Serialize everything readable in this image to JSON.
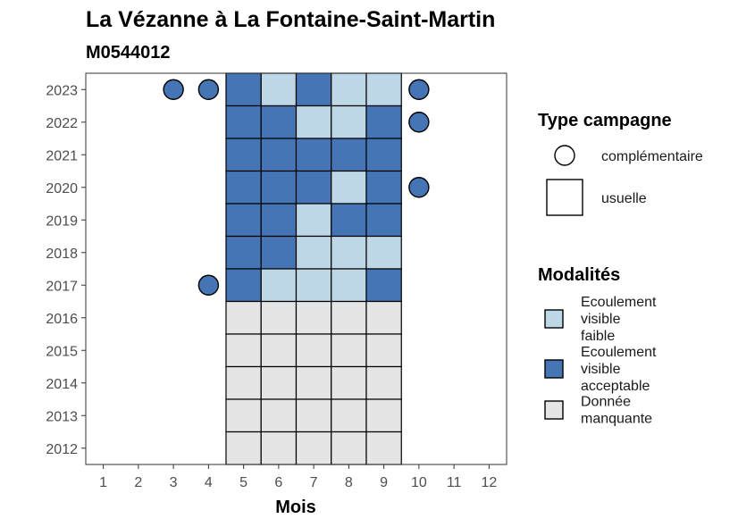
{
  "chart_data": {
    "type": "heatmap",
    "title": "La Vézanne à La Fontaine-Saint-Martin",
    "subtitle": "M0544012",
    "xlabel": "Mois",
    "ylabel": "",
    "x_ticks": [
      1,
      2,
      3,
      4,
      5,
      6,
      7,
      8,
      9,
      10,
      11,
      12
    ],
    "y_ticks": [
      2012,
      2013,
      2014,
      2015,
      2016,
      2017,
      2018,
      2019,
      2020,
      2021,
      2022,
      2023
    ],
    "xlim": [
      0.5,
      12.5
    ],
    "ylim": [
      2011.5,
      2023.5
    ],
    "grid": false,
    "legend_position": "right",
    "modalites": {
      "title": "Modalités",
      "entries": [
        {
          "key": "faible",
          "label_lines": [
            "Ecoulement",
            "visible",
            "faible"
          ],
          "color": "#bdd7e7"
        },
        {
          "key": "acceptable",
          "label_lines": [
            "Ecoulement",
            "visible",
            "acceptable"
          ],
          "color": "#4575b4"
        },
        {
          "key": "manquante",
          "label_lines": [
            "Donnée",
            "manquante"
          ],
          "color": "#e5e5e5"
        }
      ]
    },
    "type_campagne": {
      "title": "Type campagne",
      "entries": [
        {
          "key": "complementaire",
          "label": "complémentaire",
          "shape": "circle"
        },
        {
          "key": "usuelle",
          "label": "usuelle",
          "shape": "square"
        }
      ]
    },
    "usuelle_tiles": [
      {
        "year": 2023,
        "month": 5,
        "modalite": "acceptable"
      },
      {
        "year": 2023,
        "month": 6,
        "modalite": "faible"
      },
      {
        "year": 2023,
        "month": 7,
        "modalite": "acceptable"
      },
      {
        "year": 2023,
        "month": 8,
        "modalite": "faible"
      },
      {
        "year": 2023,
        "month": 9,
        "modalite": "faible"
      },
      {
        "year": 2022,
        "month": 5,
        "modalite": "acceptable"
      },
      {
        "year": 2022,
        "month": 6,
        "modalite": "acceptable"
      },
      {
        "year": 2022,
        "month": 7,
        "modalite": "faible"
      },
      {
        "year": 2022,
        "month": 8,
        "modalite": "faible"
      },
      {
        "year": 2022,
        "month": 9,
        "modalite": "acceptable"
      },
      {
        "year": 2021,
        "month": 5,
        "modalite": "acceptable"
      },
      {
        "year": 2021,
        "month": 6,
        "modalite": "acceptable"
      },
      {
        "year": 2021,
        "month": 7,
        "modalite": "acceptable"
      },
      {
        "year": 2021,
        "month": 8,
        "modalite": "acceptable"
      },
      {
        "year": 2021,
        "month": 9,
        "modalite": "acceptable"
      },
      {
        "year": 2020,
        "month": 5,
        "modalite": "acceptable"
      },
      {
        "year": 2020,
        "month": 6,
        "modalite": "acceptable"
      },
      {
        "year": 2020,
        "month": 7,
        "modalite": "acceptable"
      },
      {
        "year": 2020,
        "month": 8,
        "modalite": "faible"
      },
      {
        "year": 2020,
        "month": 9,
        "modalite": "acceptable"
      },
      {
        "year": 2019,
        "month": 5,
        "modalite": "acceptable"
      },
      {
        "year": 2019,
        "month": 6,
        "modalite": "acceptable"
      },
      {
        "year": 2019,
        "month": 7,
        "modalite": "faible"
      },
      {
        "year": 2019,
        "month": 8,
        "modalite": "acceptable"
      },
      {
        "year": 2019,
        "month": 9,
        "modalite": "acceptable"
      },
      {
        "year": 2018,
        "month": 5,
        "modalite": "acceptable"
      },
      {
        "year": 2018,
        "month": 6,
        "modalite": "acceptable"
      },
      {
        "year": 2018,
        "month": 7,
        "modalite": "faible"
      },
      {
        "year": 2018,
        "month": 8,
        "modalite": "faible"
      },
      {
        "year": 2018,
        "month": 9,
        "modalite": "faible"
      },
      {
        "year": 2017,
        "month": 5,
        "modalite": "acceptable"
      },
      {
        "year": 2017,
        "month": 6,
        "modalite": "faible"
      },
      {
        "year": 2017,
        "month": 7,
        "modalite": "faible"
      },
      {
        "year": 2017,
        "month": 8,
        "modalite": "faible"
      },
      {
        "year": 2017,
        "month": 9,
        "modalite": "acceptable"
      },
      {
        "year": 2016,
        "month": 5,
        "modalite": "manquante"
      },
      {
        "year": 2016,
        "month": 6,
        "modalite": "manquante"
      },
      {
        "year": 2016,
        "month": 7,
        "modalite": "manquante"
      },
      {
        "year": 2016,
        "month": 8,
        "modalite": "manquante"
      },
      {
        "year": 2016,
        "month": 9,
        "modalite": "manquante"
      },
      {
        "year": 2015,
        "month": 5,
        "modalite": "manquante"
      },
      {
        "year": 2015,
        "month": 6,
        "modalite": "manquante"
      },
      {
        "year": 2015,
        "month": 7,
        "modalite": "manquante"
      },
      {
        "year": 2015,
        "month": 8,
        "modalite": "manquante"
      },
      {
        "year": 2015,
        "month": 9,
        "modalite": "manquante"
      },
      {
        "year": 2014,
        "month": 5,
        "modalite": "manquante"
      },
      {
        "year": 2014,
        "month": 6,
        "modalite": "manquante"
      },
      {
        "year": 2014,
        "month": 7,
        "modalite": "manquante"
      },
      {
        "year": 2014,
        "month": 8,
        "modalite": "manquante"
      },
      {
        "year": 2014,
        "month": 9,
        "modalite": "manquante"
      },
      {
        "year": 2013,
        "month": 5,
        "modalite": "manquante"
      },
      {
        "year": 2013,
        "month": 6,
        "modalite": "manquante"
      },
      {
        "year": 2013,
        "month": 7,
        "modalite": "manquante"
      },
      {
        "year": 2013,
        "month": 8,
        "modalite": "manquante"
      },
      {
        "year": 2013,
        "month": 9,
        "modalite": "manquante"
      },
      {
        "year": 2012,
        "month": 5,
        "modalite": "manquante"
      },
      {
        "year": 2012,
        "month": 6,
        "modalite": "manquante"
      },
      {
        "year": 2012,
        "month": 7,
        "modalite": "manquante"
      },
      {
        "year": 2012,
        "month": 8,
        "modalite": "manquante"
      },
      {
        "year": 2012,
        "month": 9,
        "modalite": "manquante"
      }
    ],
    "complementaire_points": [
      {
        "year": 2023,
        "month": 3,
        "modalite": "acceptable"
      },
      {
        "year": 2023,
        "month": 4,
        "modalite": "acceptable"
      },
      {
        "year": 2023,
        "month": 10,
        "modalite": "acceptable"
      },
      {
        "year": 2022,
        "month": 10,
        "modalite": "acceptable"
      },
      {
        "year": 2020,
        "month": 10,
        "modalite": "acceptable"
      },
      {
        "year": 2017,
        "month": 4,
        "modalite": "acceptable"
      }
    ]
  }
}
